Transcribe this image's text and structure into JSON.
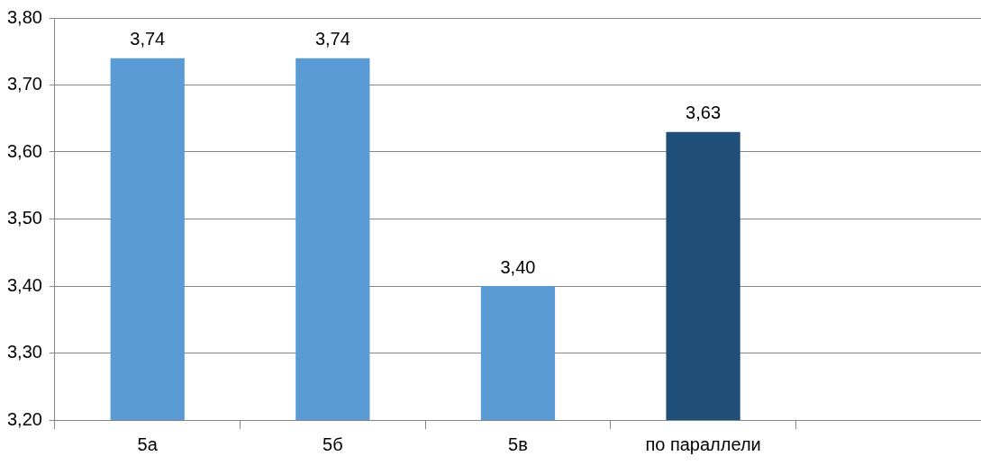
{
  "chart_data": {
    "type": "bar",
    "categories": [
      "5а",
      "5б",
      "5в",
      "по параллели",
      null
    ],
    "values": [
      3.74,
      3.74,
      3.4,
      3.63,
      null
    ],
    "colors": [
      "#5b9bd5",
      "#5b9bd5",
      "#5b9bd5",
      "#1f4e79",
      null
    ],
    "value_labels": [
      "3,74",
      "3,74",
      "3,40",
      "3,63",
      null
    ],
    "ylim": [
      3.2,
      3.8
    ],
    "yticks": [
      {
        "value": 3.2,
        "label": "3,20"
      },
      {
        "value": 3.3,
        "label": "3,30"
      },
      {
        "value": 3.4,
        "label": "3,40"
      },
      {
        "value": 3.5,
        "label": "3,50"
      },
      {
        "value": 3.6,
        "label": "3,60"
      },
      {
        "value": 3.7,
        "label": "3,70"
      },
      {
        "value": 3.8,
        "label": "3,80"
      }
    ],
    "grid": "y",
    "legend": false
  }
}
